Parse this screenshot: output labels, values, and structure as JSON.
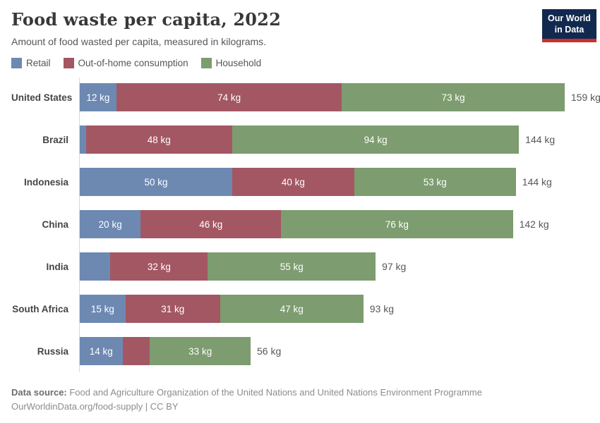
{
  "header": {
    "title": "Food waste per capita, 2022",
    "subtitle": "Amount of food wasted per capita, measured in kilograms.",
    "logo": {
      "line1": "Our World",
      "line2": "in Data"
    }
  },
  "colors": {
    "retail": "#6d89b2",
    "out_of_home": "#a35763",
    "household": "#7d9c6f",
    "logo_bg": "#12294f",
    "logo_stripe": "#c9302f",
    "axis": "#dadada"
  },
  "legend": [
    {
      "label": "Retail",
      "color": "#6d89b2"
    },
    {
      "label": "Out-of-home consumption",
      "color": "#a35763"
    },
    {
      "label": "Household",
      "color": "#7d9c6f"
    }
  ],
  "chart_data": {
    "type": "bar",
    "orientation": "horizontal",
    "stacked": true,
    "unit": "kg",
    "xlim": [
      0,
      159
    ],
    "grid": false,
    "legend_position": "top",
    "categories": [
      "United States",
      "Brazil",
      "Indonesia",
      "China",
      "India",
      "South Africa",
      "Russia"
    ],
    "series": [
      {
        "name": "Retail",
        "color": "#6d89b2",
        "values": [
          12,
          2,
          50,
          20,
          10,
          15,
          14
        ],
        "labels": [
          "12 kg",
          "",
          "50 kg",
          "20 kg",
          "",
          "15 kg",
          "14 kg"
        ]
      },
      {
        "name": "Out-of-home consumption",
        "color": "#a35763",
        "values": [
          74,
          48,
          40,
          46,
          32,
          31,
          9
        ],
        "labels": [
          "74 kg",
          "48 kg",
          "40 kg",
          "46 kg",
          "32 kg",
          "31 kg",
          ""
        ]
      },
      {
        "name": "Household",
        "color": "#7d9c6f",
        "values": [
          73,
          94,
          53,
          76,
          55,
          47,
          33
        ],
        "labels": [
          "73 kg",
          "94 kg",
          "53 kg",
          "76 kg",
          "55 kg",
          "47 kg",
          "33 kg"
        ]
      }
    ],
    "totals": [
      "159 kg",
      "144 kg",
      "144 kg",
      "142 kg",
      "97 kg",
      "93 kg",
      "56 kg"
    ]
  },
  "footer": {
    "source_label": "Data source:",
    "source_text": " Food and Agriculture Organization of the United Nations and United Nations Environment Programme",
    "attribution": "OurWorldinData.org/food-supply | CC BY"
  }
}
